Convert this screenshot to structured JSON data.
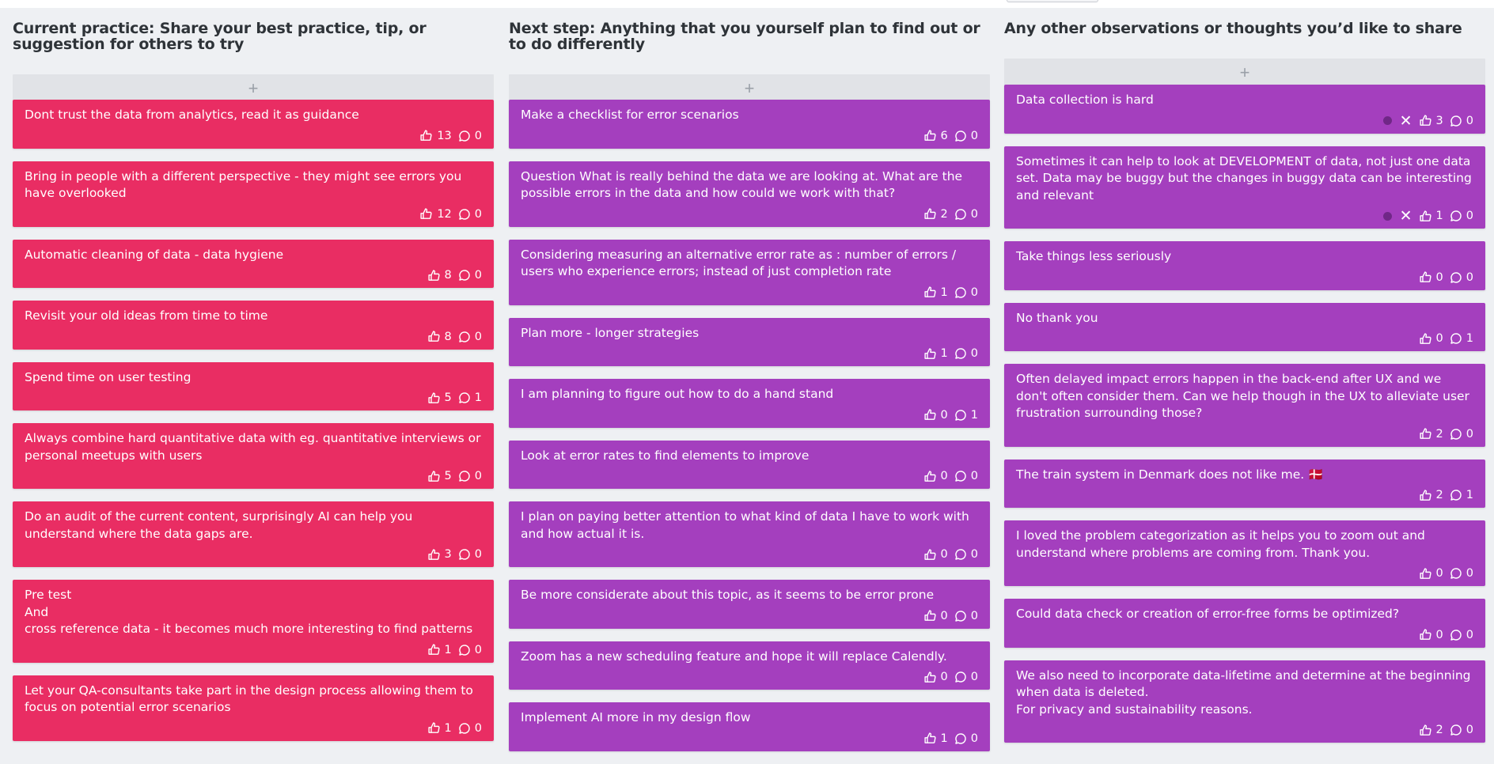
{
  "colors": {
    "red_card": "#e92d63",
    "purple_card": "#a43fbe",
    "add_bar": "#e1e3e7",
    "background": "#eef0f3"
  },
  "icons": {
    "like": "thumbs-up-icon",
    "comment": "comment-icon",
    "add": "plus-icon",
    "remove": "close-icon"
  },
  "add_label": "+",
  "columns": [
    {
      "title": "Current practice: Share your best practice, tip, or suggestion for others to try",
      "color": "#e92d63",
      "cards": [
        {
          "text": "Dont trust the data from analytics, read it as guidance",
          "likes": "13",
          "comments": "0"
        },
        {
          "text": "Bring in people with a different perspective - they might see errors you have overlooked",
          "likes": "12",
          "comments": "0"
        },
        {
          "text": "Automatic cleaning of data - data hygiene",
          "likes": "8",
          "comments": "0"
        },
        {
          "text": "Revisit your old ideas from time to time",
          "likes": "8",
          "comments": "0"
        },
        {
          "text": "Spend time on user testing",
          "likes": "5",
          "comments": "1"
        },
        {
          "text": "Always combine hard quantitative data with eg. quantitative interviews or personal meetups with users",
          "likes": "5",
          "comments": "0"
        },
        {
          "text": "Do an audit of the current content, surprisingly AI can help you understand where the data gaps are.",
          "likes": "3",
          "comments": "0"
        },
        {
          "text": "Pre test\nAnd\ncross reference data - it becomes much more interesting to find patterns",
          "likes": "1",
          "comments": "0"
        },
        {
          "text": "Let your QA-consultants take part in the design process allowing them to focus on potential error scenarios",
          "likes": "1",
          "comments": "0"
        }
      ]
    },
    {
      "title": "Next step: Anything that you yourself plan to find out or to do differently",
      "color": "#a43fbe",
      "cards": [
        {
          "text": "Make a checklist for error scenarios",
          "likes": "6",
          "comments": "0"
        },
        {
          "text": "Question What is really behind the data we are looking at. What are the possible errors in the data and how could we work with that?",
          "likes": "2",
          "comments": "0"
        },
        {
          "text": "Considering measuring an alternative error rate as : number of errors / users who experience errors; instead of just completion rate",
          "likes": "1",
          "comments": "0"
        },
        {
          "text": "Plan more - longer strategies",
          "likes": "1",
          "comments": "0"
        },
        {
          "text": "I am planning to figure out how to do a hand stand",
          "likes": "0",
          "comments": "1"
        },
        {
          "text": "Look at error rates to find elements to improve",
          "likes": "0",
          "comments": "0"
        },
        {
          "text": "I plan on paying better attention to what kind of data I have to work with and how actual it is.",
          "likes": "0",
          "comments": "0"
        },
        {
          "text": "Be more considerate about this topic, as it seems to be error prone",
          "likes": "0",
          "comments": "0"
        },
        {
          "text": "Zoom has a new scheduling feature and hope it will replace Calendly.",
          "likes": "0",
          "comments": "0"
        },
        {
          "text": "Implement AI more in my design flow",
          "likes": "1",
          "comments": "0"
        }
      ]
    },
    {
      "title": "Any other observations or thoughts you’d like to share",
      "color": "#a43fbe",
      "cards": [
        {
          "text": "Data collection is hard",
          "likes": "3",
          "comments": "0",
          "own": true
        },
        {
          "text": "Sometimes it can help to look at DEVELOPMENT of data, not just one data set. Data may be buggy but the changes in buggy data can be interesting and relevant",
          "likes": "1",
          "comments": "0",
          "own": true
        },
        {
          "text": "Take things less seriously",
          "likes": "0",
          "comments": "0"
        },
        {
          "text": "No thank you",
          "likes": "0",
          "comments": "1"
        },
        {
          "text": "Often delayed impact errors happen in the back-end after UX and we don't often consider them. Can we help though in the UX to alleviate user frustration surrounding those?",
          "likes": "2",
          "comments": "0"
        },
        {
          "text": "The train system in Denmark does not like me. 🇩🇰",
          "likes": "2",
          "comments": "1"
        },
        {
          "text": "I loved the problem categorization as it helps you to zoom out and understand where problems are coming from. Thank you.",
          "likes": "0",
          "comments": "0"
        },
        {
          "text": "Could data check or creation of error-free forms be optimized?",
          "likes": "0",
          "comments": "0"
        },
        {
          "text": "We also need to incorporate data-lifetime and determine at the beginning when data is deleted.\nFor privacy and sustainability reasons.",
          "likes": "2",
          "comments": "0"
        }
      ]
    }
  ]
}
